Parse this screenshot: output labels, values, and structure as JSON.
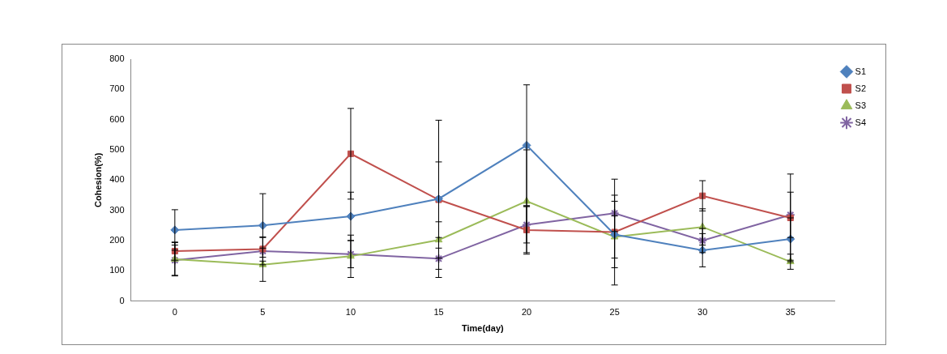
{
  "chart_data": {
    "type": "line",
    "x_label": "Time(day)",
    "y_label": "Cohesion(%)",
    "categories": [
      0,
      5,
      10,
      15,
      20,
      25,
      30,
      35
    ],
    "series": [
      {
        "name": "S1",
        "color": "#4f81bd",
        "marker": "diamond",
        "values": [
          235,
          250,
          280,
          338,
          515,
          220,
          168,
          205
        ],
        "errors": [
          67,
          105,
          80,
          260,
          200,
          110,
          55,
          70
        ]
      },
      {
        "name": "S2",
        "color": "#c0504d",
        "marker": "square",
        "values": [
          165,
          172,
          487,
          335,
          235,
          228,
          348,
          275
        ],
        "errors": [
          30,
          40,
          150,
          125,
          80,
          175,
          50,
          145
        ]
      },
      {
        "name": "S3",
        "color": "#9bbb59",
        "marker": "triangle",
        "values": [
          138,
          120,
          148,
          202,
          330,
          212,
          245,
          130
        ],
        "errors": [
          55,
          55,
          70,
          60,
          170,
          70,
          60,
          25
        ]
      },
      {
        "name": "S4",
        "color": "#8064a2",
        "marker": "x",
        "values": [
          135,
          165,
          155,
          140,
          252,
          290,
          200,
          285
        ],
        "errors": [
          50,
          45,
          45,
          35,
          60,
          60,
          40,
          75
        ]
      }
    ],
    "ylim": [
      0,
      800
    ],
    "yticks": [
      0,
      100,
      200,
      300,
      400,
      500,
      600,
      700,
      800
    ],
    "grid": false,
    "legend": "right"
  }
}
